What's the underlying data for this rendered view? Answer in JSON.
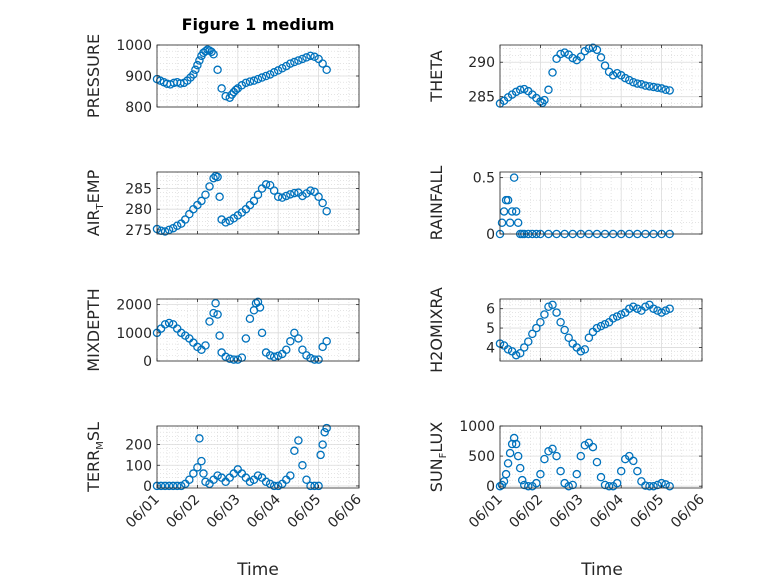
{
  "figure": {
    "title": "Figure 1 medium",
    "xlabel": "Time",
    "marker_color": "#0072BD",
    "x_ticks": [
      "06/01",
      "06/02",
      "06/03",
      "06/04",
      "06/05",
      "06/06"
    ],
    "x_range_days": [
      0,
      5
    ]
  },
  "chart_data": [
    {
      "type": "scatter",
      "name": "pressure",
      "ylabel": {
        "main": "PRESSURE",
        "sub": ""
      },
      "ylim": [
        800,
        1000
      ],
      "yticks": [
        800,
        900,
        1000
      ],
      "x": [
        0,
        0.08,
        0.17,
        0.25,
        0.33,
        0.42,
        0.5,
        0.58,
        0.67,
        0.75,
        0.83,
        0.9,
        0.95,
        1,
        1.05,
        1.1,
        1.15,
        1.2,
        1.25,
        1.3,
        1.35,
        1.4,
        1.5,
        1.6,
        1.7,
        1.8,
        1.85,
        1.9,
        1.95,
        2,
        2.1,
        2.2,
        2.3,
        2.4,
        2.5,
        2.6,
        2.7,
        2.8,
        2.9,
        3,
        3.1,
        3.2,
        3.3,
        3.4,
        3.5,
        3.6,
        3.7,
        3.8,
        3.9,
        4,
        4.1,
        4.2
      ],
      "y": [
        890,
        885,
        880,
        875,
        873,
        878,
        880,
        876,
        878,
        885,
        895,
        905,
        920,
        935,
        950,
        965,
        975,
        980,
        985,
        982,
        978,
        970,
        920,
        860,
        835,
        830,
        840,
        848,
        855,
        860,
        870,
        878,
        882,
        885,
        890,
        895,
        900,
        905,
        912,
        918,
        925,
        932,
        940,
        945,
        950,
        955,
        960,
        965,
        962,
        955,
        940,
        920
      ]
    },
    {
      "type": "scatter",
      "name": "theta",
      "ylabel": {
        "main": "THETA",
        "sub": ""
      },
      "ylim": [
        283.5,
        292.5
      ],
      "yticks": [
        285,
        290
      ],
      "x": [
        0,
        0.1,
        0.2,
        0.3,
        0.4,
        0.5,
        0.6,
        0.7,
        0.8,
        0.9,
        1,
        1.05,
        1.1,
        1.2,
        1.3,
        1.4,
        1.5,
        1.6,
        1.7,
        1.8,
        1.9,
        2,
        2.1,
        2.2,
        2.3,
        2.4,
        2.5,
        2.6,
        2.7,
        2.8,
        2.9,
        3,
        3.1,
        3.2,
        3.3,
        3.4,
        3.5,
        3.6,
        3.7,
        3.8,
        3.9,
        4,
        4.1,
        4.2
      ],
      "y": [
        284,
        284.4,
        284.9,
        285.3,
        285.7,
        286,
        286.1,
        285.8,
        285.3,
        284.8,
        284.3,
        284.1,
        284.5,
        286,
        288.5,
        290.5,
        291.2,
        291.4,
        291.1,
        290.6,
        290.3,
        290.8,
        291.6,
        292,
        292.1,
        291.8,
        290.7,
        289.5,
        288.6,
        288.1,
        288.4,
        288.1,
        287.7,
        287.4,
        287.1,
        286.9,
        286.8,
        286.6,
        286.5,
        286.4,
        286.3,
        286.2,
        286,
        285.9
      ]
    },
    {
      "type": "scatter",
      "name": "air-temp",
      "ylabel": {
        "main": "AIR",
        "sub": "T",
        "rest": "EMP"
      },
      "ylim": [
        274,
        289
      ],
      "yticks": [
        275,
        280,
        285
      ],
      "x": [
        0,
        0.1,
        0.2,
        0.3,
        0.4,
        0.5,
        0.6,
        0.7,
        0.8,
        0.9,
        1,
        1.1,
        1.2,
        1.3,
        1.4,
        1.45,
        1.5,
        1.55,
        1.6,
        1.7,
        1.8,
        1.9,
        2,
        2.1,
        2.2,
        2.3,
        2.4,
        2.5,
        2.6,
        2.7,
        2.8,
        2.9,
        3,
        3.1,
        3.2,
        3.3,
        3.4,
        3.5,
        3.6,
        3.7,
        3.8,
        3.9,
        4,
        4.1,
        4.2
      ],
      "y": [
        275.2,
        274.8,
        274.6,
        275,
        275.4,
        276,
        276.5,
        277.5,
        278.8,
        280,
        281,
        282,
        283.5,
        285.5,
        287.5,
        288,
        287.8,
        283,
        277.5,
        276.8,
        277.2,
        277.8,
        278.5,
        279.2,
        280,
        281,
        282,
        283.5,
        285,
        286,
        285.8,
        284.5,
        283,
        282.8,
        283.2,
        283.6,
        283.9,
        284,
        283.2,
        283.8,
        284.5,
        284.2,
        283,
        281.5,
        279.5
      ]
    },
    {
      "type": "scatter",
      "name": "rainfall",
      "ylabel": {
        "main": "RAINFALL",
        "sub": ""
      },
      "ylim": [
        0,
        0.55
      ],
      "yticks": [
        0,
        0.5
      ],
      "x": [
        0,
        0.05,
        0.1,
        0.15,
        0.2,
        0.25,
        0.3,
        0.35,
        0.4,
        0.45,
        0.5,
        0.55,
        0.6,
        0.7,
        0.8,
        0.9,
        1,
        1.2,
        1.4,
        1.6,
        1.8,
        2,
        2.2,
        2.4,
        2.6,
        2.8,
        3,
        3.2,
        3.4,
        3.6,
        3.8,
        4,
        4.2
      ],
      "y": [
        0,
        0.1,
        0.2,
        0.3,
        0.3,
        0.1,
        0.2,
        0.5,
        0.2,
        0.1,
        0,
        0,
        0,
        0,
        0,
        0,
        0,
        0,
        0,
        0,
        0,
        0,
        0,
        0,
        0,
        0,
        0,
        0,
        0,
        0,
        0,
        0,
        0
      ]
    },
    {
      "type": "scatter",
      "name": "mixdepth",
      "ylabel": {
        "main": "MIXDEPTH",
        "sub": ""
      },
      "ylim": [
        0,
        2200
      ],
      "yticks": [
        0,
        1000,
        2000
      ],
      "x": [
        0,
        0.1,
        0.2,
        0.3,
        0.4,
        0.5,
        0.6,
        0.7,
        0.8,
        0.9,
        1,
        1.1,
        1.2,
        1.3,
        1.4,
        1.45,
        1.5,
        1.55,
        1.6,
        1.7,
        1.8,
        1.9,
        2,
        2.1,
        2.2,
        2.3,
        2.4,
        2.45,
        2.5,
        2.55,
        2.6,
        2.7,
        2.8,
        2.9,
        3,
        3.1,
        3.2,
        3.3,
        3.4,
        3.5,
        3.6,
        3.7,
        3.8,
        3.9,
        4,
        4.1,
        4.2
      ],
      "y": [
        1000,
        1150,
        1300,
        1350,
        1300,
        1150,
        1000,
        900,
        800,
        650,
        500,
        400,
        550,
        1400,
        1700,
        2050,
        1650,
        900,
        300,
        150,
        80,
        50,
        50,
        120,
        800,
        1500,
        1800,
        2050,
        2100,
        1900,
        1000,
        300,
        200,
        150,
        180,
        250,
        400,
        700,
        1000,
        800,
        400,
        200,
        100,
        50,
        50,
        500,
        700
      ]
    },
    {
      "type": "scatter",
      "name": "h2omixra",
      "ylabel": {
        "main": "H2OMIXRA",
        "sub": ""
      },
      "ylim": [
        3.3,
        6.5
      ],
      "yticks": [
        4,
        5,
        6
      ],
      "x": [
        0,
        0.1,
        0.2,
        0.3,
        0.4,
        0.5,
        0.6,
        0.7,
        0.8,
        0.9,
        1,
        1.1,
        1.2,
        1.3,
        1.4,
        1.5,
        1.6,
        1.7,
        1.8,
        1.9,
        2,
        2.1,
        2.2,
        2.3,
        2.4,
        2.5,
        2.6,
        2.7,
        2.8,
        2.9,
        3,
        3.1,
        3.2,
        3.3,
        3.4,
        3.5,
        3.6,
        3.7,
        3.8,
        3.9,
        4,
        4.1,
        4.2
      ],
      "y": [
        4.2,
        4.1,
        3.9,
        3.8,
        3.6,
        3.7,
        4.0,
        4.3,
        4.7,
        5.0,
        5.3,
        5.7,
        6.1,
        6.2,
        5.8,
        5.3,
        4.9,
        4.5,
        4.2,
        4.0,
        3.8,
        3.9,
        4.5,
        4.8,
        5.0,
        5.1,
        5.2,
        5.3,
        5.5,
        5.6,
        5.7,
        5.8,
        6.0,
        6.1,
        6.0,
        5.9,
        6.1,
        6.2,
        6.0,
        5.9,
        5.8,
        5.9,
        6.0
      ]
    },
    {
      "type": "scatter",
      "name": "terr-msl",
      "ylabel": {
        "main": "TERR",
        "sub": "M",
        "rest": "SL"
      },
      "ylim": [
        -10,
        290
      ],
      "yticks": [
        0,
        100,
        200
      ],
      "x": [
        0,
        0.1,
        0.2,
        0.3,
        0.4,
        0.5,
        0.6,
        0.7,
        0.8,
        0.9,
        1,
        1.05,
        1.1,
        1.15,
        1.2,
        1.3,
        1.4,
        1.5,
        1.6,
        1.7,
        1.8,
        1.9,
        2,
        2.1,
        2.2,
        2.3,
        2.4,
        2.5,
        2.6,
        2.7,
        2.8,
        2.9,
        3,
        3.1,
        3.2,
        3.3,
        3.4,
        3.5,
        3.6,
        3.7,
        3.8,
        3.9,
        4,
        4.05,
        4.1,
        4.15,
        4.2
      ],
      "y": [
        0,
        0,
        0,
        0,
        0,
        0,
        0,
        10,
        30,
        60,
        90,
        230,
        120,
        60,
        20,
        10,
        30,
        50,
        40,
        20,
        40,
        60,
        80,
        60,
        40,
        20,
        30,
        50,
        40,
        20,
        10,
        0,
        0,
        10,
        30,
        50,
        170,
        220,
        100,
        30,
        0,
        0,
        0,
        150,
        200,
        260,
        280
      ]
    },
    {
      "type": "scatter",
      "name": "sun-flux",
      "ylabel": {
        "main": "SUN",
        "sub": "F",
        "rest": "LUX"
      },
      "ylim": [
        -30,
        1000
      ],
      "yticks": [
        0,
        500,
        1000
      ],
      "x": [
        0,
        0.05,
        0.1,
        0.15,
        0.2,
        0.25,
        0.3,
        0.35,
        0.4,
        0.45,
        0.5,
        0.55,
        0.6,
        0.7,
        0.8,
        0.9,
        1,
        1.1,
        1.2,
        1.3,
        1.4,
        1.5,
        1.6,
        1.7,
        1.8,
        1.9,
        2,
        2.1,
        2.2,
        2.3,
        2.4,
        2.5,
        2.6,
        2.7,
        2.8,
        2.9,
        3,
        3.1,
        3.2,
        3.3,
        3.4,
        3.5,
        3.6,
        3.7,
        3.8,
        3.9,
        4,
        4.1,
        4.2
      ],
      "y": [
        0,
        20,
        80,
        200,
        380,
        550,
        700,
        800,
        700,
        500,
        300,
        100,
        20,
        0,
        0,
        50,
        200,
        450,
        580,
        620,
        500,
        250,
        50,
        0,
        20,
        200,
        500,
        680,
        720,
        650,
        400,
        150,
        20,
        0,
        0,
        50,
        250,
        450,
        500,
        420,
        250,
        80,
        10,
        0,
        0,
        20,
        50,
        30,
        0
      ]
    }
  ]
}
